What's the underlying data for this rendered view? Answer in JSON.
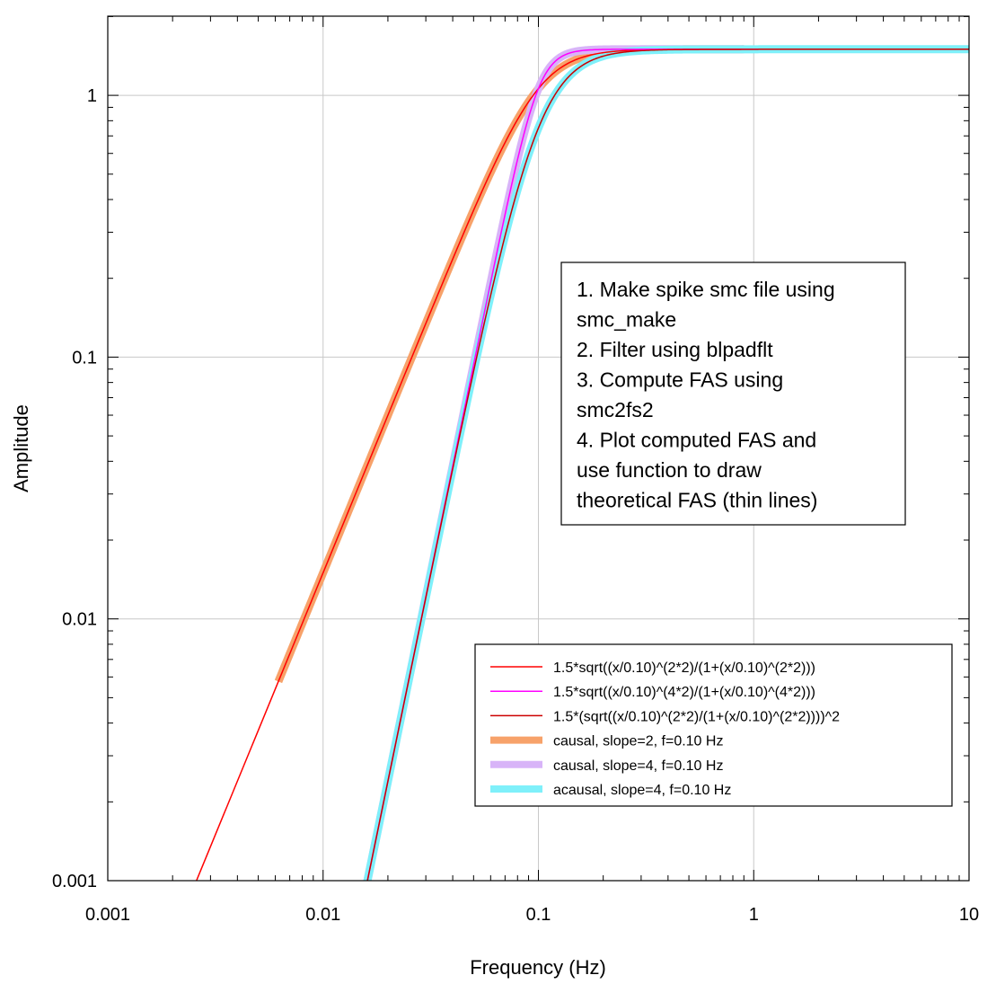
{
  "chart_data": {
    "type": "line",
    "title": "",
    "xlabel": "Frequency (Hz)",
    "ylabel": "Amplitude",
    "x_scale": "log",
    "y_scale": "log",
    "xlim": [
      0.001,
      10
    ],
    "ylim": [
      0.001,
      2
    ],
    "grid": true,
    "x_ticks": [
      0.001,
      0.01,
      0.1,
      1,
      10
    ],
    "x_tick_labels": [
      "0.001",
      "0.01",
      "0.1",
      "1",
      "10"
    ],
    "y_ticks": [
      0.001,
      0.01,
      0.1,
      1
    ],
    "y_tick_labels": [
      "0.001",
      "0.01",
      "0.1",
      "1"
    ],
    "legend_placement": "bottom-right",
    "annotation_lines": [
      "1. Make spike smc file using",
      "smc_make",
      "2. Filter using blpadflt",
      "3. Compute FAS using",
      "smc2fs2",
      "4. Plot computed FAS and",
      "use function to draw",
      "theoretical FAS (thin lines)"
    ],
    "series": [
      {
        "name": "causal, slope=2, f=0.10 Hz",
        "color": "#f7a26a",
        "style": "thick",
        "fc": 0.1,
        "order": 2,
        "acausal": false,
        "x_range": [
          0.0062,
          0.9
        ],
        "x": [
          0.0062,
          0.01,
          0.02,
          0.05,
          0.08,
          0.1,
          0.15,
          0.2,
          0.3,
          0.5,
          0.9
        ],
        "y": [
          0.0058,
          0.015,
          0.0599,
          0.3638,
          0.7797,
          1.0607,
          1.3842,
          1.4552,
          1.4913,
          1.4971,
          1.4999
        ]
      },
      {
        "name": "causal, slope=4, f=0.10 Hz",
        "color": "#d8b4f8",
        "style": "thick",
        "fc": 0.1,
        "order": 4,
        "acausal": false,
        "x_range": [
          0.015,
          0.9
        ],
        "x": [
          0.015,
          0.02,
          0.03,
          0.05,
          0.07,
          0.1,
          0.15,
          0.2,
          0.3,
          0.5,
          0.9
        ],
        "y": [
          0.0008,
          0.0024,
          0.0122,
          0.0931,
          0.3542,
          1.0607,
          1.4773,
          1.4971,
          1.4998,
          1.5,
          1.5
        ]
      },
      {
        "name": "acausal, slope=4, f=0.10 Hz",
        "color": "#7ff0fa",
        "style": "thick",
        "fc": 0.1,
        "order": 2,
        "acausal": true,
        "x_range": [
          0.015,
          10
        ],
        "x": [
          0.015,
          0.02,
          0.03,
          0.05,
          0.07,
          0.1,
          0.15,
          0.2,
          0.3,
          0.5,
          1,
          10
        ],
        "y": [
          0.0008,
          0.0024,
          0.0121,
          0.0882,
          0.2958,
          0.75,
          1.2083,
          1.4118,
          1.4817,
          1.4976,
          1.4999,
          1.5
        ]
      },
      {
        "name": "1.5*sqrt((x/0.10)^(2*2)/(1+(x/0.10)^(2*2)))",
        "color": "#ff0000",
        "style": "thin",
        "fc": 0.1,
        "order": 2,
        "acausal": false,
        "x_range": [
          0.0025,
          10
        ],
        "x": [
          0.0025,
          0.005,
          0.01,
          0.02,
          0.05,
          0.1,
          0.2,
          0.5,
          1,
          10
        ],
        "y": [
          0.0009,
          0.0038,
          0.015,
          0.0599,
          0.3638,
          1.0607,
          1.4552,
          1.4971,
          1.4999,
          1.5
        ]
      },
      {
        "name": "1.5*sqrt((x/0.10)^(4*2)/(1+(x/0.10)^(4*2)))",
        "color": "#ff00ff",
        "style": "thin",
        "fc": 0.1,
        "order": 4,
        "acausal": false,
        "x_range": [
          0.015,
          10
        ],
        "x": [
          0.015,
          0.02,
          0.03,
          0.05,
          0.07,
          0.1,
          0.15,
          0.2,
          0.5,
          1,
          10
        ],
        "y": [
          0.0008,
          0.0024,
          0.0122,
          0.0931,
          0.3542,
          1.0607,
          1.4773,
          1.4971,
          1.5,
          1.5,
          1.5
        ]
      },
      {
        "name": "1.5*(sqrt((x/0.10)^(2*2)/(1+(x/0.10)^(2*2))))^2",
        "color": "#cc0000",
        "style": "thin",
        "fc": 0.1,
        "order": 2,
        "acausal": true,
        "x_range": [
          0.015,
          10
        ],
        "x": [
          0.015,
          0.02,
          0.03,
          0.05,
          0.07,
          0.1,
          0.15,
          0.2,
          0.3,
          0.5,
          1,
          10
        ],
        "y": [
          0.0008,
          0.0024,
          0.0121,
          0.0882,
          0.2958,
          0.75,
          1.2083,
          1.4118,
          1.4817,
          1.4976,
          1.4999,
          1.5
        ]
      }
    ],
    "legend_order": [
      3,
      4,
      5,
      0,
      1,
      2
    ]
  }
}
